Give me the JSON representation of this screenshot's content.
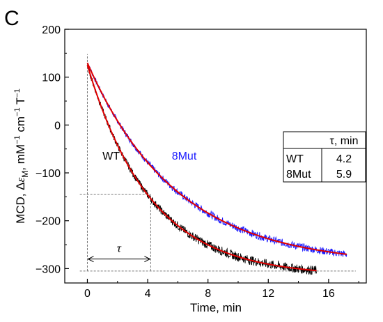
{
  "panel_label": "C",
  "chart_data": {
    "type": "line",
    "xlabel": "Time, min",
    "ylabel_parts": {
      "prefix": "MCD, Δ",
      "epsilon": "ε",
      "sub": "M",
      "rest": ", mM",
      "exp1": "−1",
      "mid": " cm",
      "exp2": "−1",
      "tail": " T",
      "exp3": "−1"
    },
    "xlim": [
      -1.5,
      18.5
    ],
    "ylim": [
      -330,
      200
    ],
    "x_ticks": [
      0,
      4,
      8,
      12,
      16
    ],
    "y_ticks": [
      200,
      100,
      0,
      -100,
      -200,
      -300
    ],
    "series": [
      {
        "name": "WT",
        "color": "#000000",
        "fit_color": "#e00000",
        "y0": 125,
        "y_inf": -316,
        "tau": 4.2,
        "x_end": 15.2,
        "noise_amplitude": 6
      },
      {
        "name": "8Mut",
        "color": "#1a1aff",
        "fit_color": "#e00000",
        "y0": 130,
        "y_inf": -293,
        "tau": 5.9,
        "x_end": 17.2,
        "noise_amplitude": 5
      }
    ],
    "annotations": {
      "tau_symbol": "τ",
      "tau_arrow": {
        "x0": 0,
        "x1": 4.2,
        "y": -280
      },
      "guide_lines": {
        "v_x": 0,
        "tau_x": 4.2,
        "h_y_tau": -145,
        "baseline_y": -305,
        "baseline_x_end": 17.8
      }
    },
    "table": {
      "header": [
        "",
        "τ, min"
      ],
      "rows": [
        [
          "WT",
          "4.2"
        ],
        [
          "8Mut",
          "5.9"
        ]
      ]
    }
  }
}
